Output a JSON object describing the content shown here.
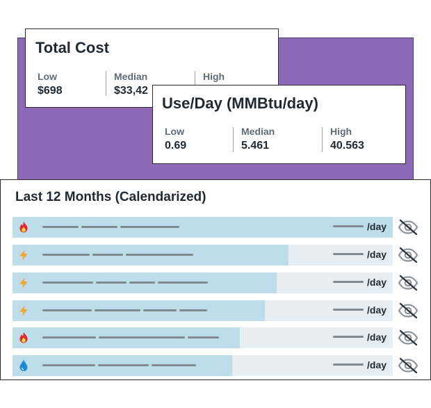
{
  "total_cost": {
    "title": "Total Cost",
    "low_label": "Low",
    "low_value": "$698",
    "median_label": "Median",
    "median_value": "$33,42",
    "high_label": "High"
  },
  "use_per_day": {
    "title": "Use/Day (MMBtu/day)",
    "low_label": "Low",
    "low_value": "0.69",
    "median_label": "Median",
    "median_value": "5.461",
    "high_label": "High",
    "high_value": "40.563"
  },
  "last_12_months": {
    "title": "Last 12 Months (Calendarized)",
    "unit_label": "/day",
    "rows": [
      {
        "icon": "flame-icon",
        "fill_fraction": 1.0
      },
      {
        "icon": "lightning-icon",
        "fill_fraction": 0.726
      },
      {
        "icon": "lightning-icon",
        "fill_fraction": 0.695
      },
      {
        "icon": "lightning-icon",
        "fill_fraction": 0.663
      },
      {
        "icon": "flame-icon",
        "fill_fraction": 0.598
      },
      {
        "icon": "water-drop-icon",
        "fill_fraction": 0.578
      }
    ]
  },
  "colors": {
    "purple": "#8e69b7",
    "row_fill": "#bcdde9",
    "row_track": "#e7eef3",
    "flame": "#e8262a",
    "lightning": "#f2a623",
    "water": "#1e88d8"
  }
}
